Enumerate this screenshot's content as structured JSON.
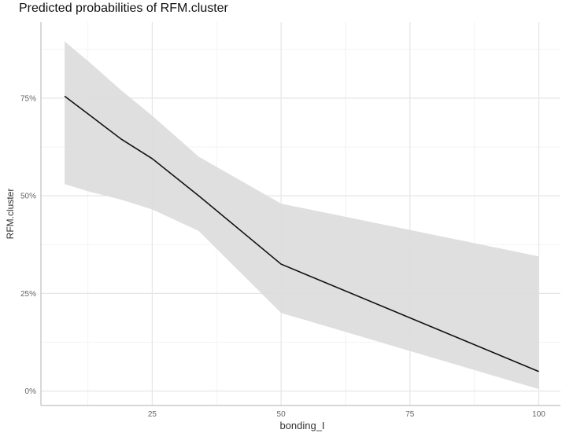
{
  "chart_data": {
    "type": "line",
    "title": "Predicted probabilities of RFM.cluster",
    "xlabel": "bonding_I",
    "ylabel": "RFM.cluster",
    "xlim": [
      3.4,
      104.2
    ],
    "ylim": [
      -0.037,
      0.945
    ],
    "xticks": [
      25,
      50,
      75,
      100
    ],
    "xtick_labels": [
      "25",
      "50",
      "75",
      "100"
    ],
    "yticks": [
      0,
      0.25,
      0.5,
      0.75
    ],
    "ytick_labels": [
      "0%",
      "25%",
      "50%",
      "75%"
    ],
    "grid": true,
    "series": [
      {
        "x": [
          8,
          13,
          19,
          25,
          34,
          50,
          100
        ],
        "y": [
          0.755,
          0.705,
          0.645,
          0.595,
          0.5,
          0.325,
          0.05
        ],
        "lower": [
          0.53,
          0.51,
          0.49,
          0.465,
          0.41,
          0.2,
          0.005
        ],
        "upper": [
          0.895,
          0.84,
          0.77,
          0.705,
          0.6,
          0.48,
          0.345
        ]
      }
    ]
  }
}
